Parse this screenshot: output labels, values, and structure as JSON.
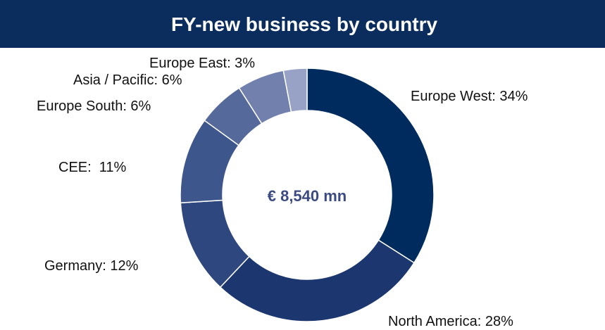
{
  "chart_data": {
    "type": "donut",
    "title": "FY-new business by country",
    "center_label": "€ 8,540 mn",
    "values": [
      34,
      28,
      12,
      11,
      6,
      6,
      3
    ],
    "value_labels": [
      "Europe West: 34%",
      "North America: 28%",
      "Germany: 12%",
      "CEE:  11%",
      "Europe South: 6%",
      "Asia / Pacific: 6%",
      "Europe East: 3%"
    ],
    "colors": [
      "#002b5e",
      "#1c3770",
      "#2e477e",
      "#3d568c",
      "#56699b",
      "#7180ad",
      "#98a2c6"
    ]
  }
}
